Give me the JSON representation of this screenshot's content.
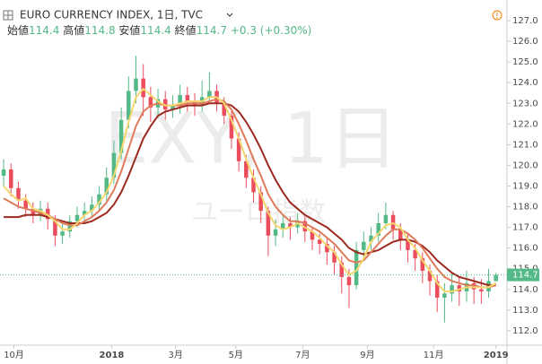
{
  "header": {
    "title": "EURO CURRENCY INDEX, 1日, TVC",
    "open_label": "始値",
    "open": 114.4,
    "high_label": "高値",
    "high": 114.8,
    "low_label": "安値",
    "low": 114.4,
    "close_label": "終値",
    "close": 114.7,
    "change": "+0.3 (+0.30%)"
  },
  "watermark": {
    "symbol": "EXY, 1日",
    "name": "ユーロ指数"
  },
  "chart_data": {
    "type": "candlestick",
    "up_color": "#53b987",
    "down_color": "#eb4d5c",
    "grid": false,
    "xlim": [
      -0.5,
      68.5
    ],
    "xticks": [
      {
        "value": 1.4,
        "label": "10月"
      },
      {
        "value": 14.7,
        "label": "2018"
      },
      {
        "value": 23.4,
        "label": "3月"
      },
      {
        "value": 31.6,
        "label": "5月"
      },
      {
        "value": 40.7,
        "label": "7月"
      },
      {
        "value": 49.5,
        "label": "9月"
      },
      {
        "value": 58.5,
        "label": "11月"
      },
      {
        "value": 67,
        "label": "2019"
      }
    ],
    "ylim": [
      111.3,
      128.0
    ],
    "yticks": [
      {
        "value": 112,
        "label": "112.0"
      },
      {
        "value": 113,
        "label": "113.0"
      },
      {
        "value": 114,
        "label": "114.0"
      },
      {
        "value": 115,
        "label": "115.0"
      },
      {
        "value": 116,
        "label": "116.0"
      },
      {
        "value": 117,
        "label": "117.0"
      },
      {
        "value": 118,
        "label": "118.0"
      },
      {
        "value": 119,
        "label": "119.0"
      },
      {
        "value": 120,
        "label": "120.0"
      },
      {
        "value": 121,
        "label": "121.0"
      },
      {
        "value": 122,
        "label": "122.0"
      },
      {
        "value": 123,
        "label": "123.0"
      },
      {
        "value": 124,
        "label": "124.0"
      },
      {
        "value": 125,
        "label": "125.0"
      },
      {
        "value": 126,
        "label": "126.0"
      },
      {
        "value": 127,
        "label": "127.0"
      }
    ],
    "last_price": 114.7,
    "last_color": "#53b987",
    "candles": [
      [
        119.5,
        120.3,
        119.0,
        119.8
      ],
      [
        119.8,
        120.1,
        118.5,
        118.9
      ],
      [
        118.9,
        119.2,
        117.9,
        118.3
      ],
      [
        118.3,
        118.6,
        117.5,
        117.9
      ],
      [
        117.9,
        118.2,
        117.2,
        117.6
      ],
      [
        117.6,
        118.3,
        117.3,
        117.9
      ],
      [
        117.9,
        118.2,
        116.9,
        117.4
      ],
      [
        117.4,
        117.6,
        116.1,
        116.6
      ],
      [
        116.6,
        117.2,
        116.2,
        116.8
      ],
      [
        116.8,
        117.6,
        116.5,
        117.3
      ],
      [
        117.3,
        118.0,
        117.0,
        117.6
      ],
      [
        117.6,
        118.2,
        117.3,
        117.8
      ],
      [
        117.8,
        118.5,
        117.5,
        118.1
      ],
      [
        118.1,
        119.0,
        117.8,
        118.6
      ],
      [
        118.6,
        119.9,
        118.3,
        119.4
      ],
      [
        119.4,
        121.2,
        119.1,
        120.6
      ],
      [
        120.6,
        122.8,
        120.3,
        122.2
      ],
      [
        122.2,
        124.3,
        121.8,
        123.6
      ],
      [
        123.6,
        125.3,
        123.0,
        124.2
      ],
      [
        124.2,
        124.9,
        122.4,
        123.3
      ],
      [
        123.3,
        123.8,
        122.1,
        122.8
      ],
      [
        122.8,
        123.7,
        122.3,
        123.2
      ],
      [
        123.2,
        123.6,
        122.2,
        122.7
      ],
      [
        122.7,
        123.4,
        122.3,
        122.9
      ],
      [
        122.9,
        123.9,
        122.5,
        123.4
      ],
      [
        123.4,
        123.8,
        122.6,
        123.1
      ],
      [
        123.1,
        123.5,
        122.4,
        122.9
      ],
      [
        122.9,
        124.1,
        122.6,
        123.3
      ],
      [
        123.3,
        124.5,
        123.0,
        123.6
      ],
      [
        123.6,
        123.9,
        122.6,
        123.0
      ],
      [
        123.0,
        123.3,
        122.0,
        122.4
      ],
      [
        122.4,
        122.6,
        120.8,
        121.3
      ],
      [
        121.3,
        121.6,
        119.7,
        120.2
      ],
      [
        120.2,
        120.5,
        118.9,
        119.4
      ],
      [
        119.4,
        119.8,
        118.2,
        118.7
      ],
      [
        118.7,
        119.0,
        117.2,
        117.8
      ],
      [
        117.8,
        118.0,
        115.6,
        116.6
      ],
      [
        116.6,
        117.4,
        116.1,
        116.9
      ],
      [
        116.9,
        117.6,
        116.5,
        117.2
      ],
      [
        117.2,
        117.5,
        116.4,
        117.0
      ],
      [
        117.0,
        117.7,
        116.7,
        117.3
      ],
      [
        117.3,
        117.5,
        116.3,
        116.8
      ],
      [
        116.8,
        117.0,
        115.9,
        116.4
      ],
      [
        116.4,
        116.7,
        115.7,
        116.2
      ],
      [
        116.2,
        116.5,
        115.2,
        115.8
      ],
      [
        115.8,
        116.1,
        114.7,
        115.3
      ],
      [
        115.3,
        115.6,
        113.8,
        114.6
      ],
      [
        114.6,
        115.0,
        113.1,
        114.2
      ],
      [
        114.2,
        116.3,
        114.0,
        115.9
      ],
      [
        115.9,
        116.8,
        115.5,
        116.3
      ],
      [
        116.3,
        117.0,
        115.9,
        116.6
      ],
      [
        116.6,
        117.7,
        116.3,
        117.2
      ],
      [
        117.2,
        118.2,
        116.9,
        117.6
      ],
      [
        117.6,
        117.8,
        116.4,
        116.9
      ],
      [
        116.9,
        117.2,
        115.9,
        116.4
      ],
      [
        116.4,
        116.7,
        115.3,
        115.9
      ],
      [
        115.9,
        116.2,
        114.9,
        115.5
      ],
      [
        115.5,
        115.8,
        114.3,
        114.9
      ],
      [
        114.9,
        115.2,
        113.7,
        114.4
      ],
      [
        114.4,
        114.7,
        112.9,
        113.6
      ],
      [
        113.6,
        114.3,
        112.4,
        113.8
      ],
      [
        113.8,
        114.8,
        113.4,
        114.2
      ],
      [
        114.2,
        114.6,
        113.2,
        113.9
      ],
      [
        113.9,
        114.9,
        113.4,
        114.3
      ],
      [
        114.3,
        114.6,
        113.3,
        114.0
      ],
      [
        114.0,
        114.5,
        113.3,
        113.9
      ],
      [
        113.9,
        115.0,
        113.6,
        114.4
      ],
      [
        114.4,
        114.8,
        114.4,
        114.7
      ]
    ],
    "series": [
      {
        "color": "#9c2a1f",
        "values": [
          117.5,
          117.5,
          117.5,
          117.6,
          117.6,
          117.6,
          117.5,
          117.4,
          117.3,
          117.2,
          117.2,
          117.2,
          117.3,
          117.5,
          117.7,
          118.1,
          118.7,
          119.5,
          120.4,
          121.3,
          121.9,
          122.4,
          122.6,
          122.7,
          122.8,
          122.9,
          122.9,
          122.9,
          123.0,
          123.0,
          123.0,
          122.9,
          122.6,
          122.1,
          121.5,
          120.8,
          120.0,
          119.3,
          118.7,
          118.2,
          117.9,
          117.6,
          117.4,
          117.2,
          117.0,
          116.7,
          116.4,
          116.0,
          115.8,
          115.7,
          115.8,
          115.9,
          116.1,
          116.3,
          116.4,
          116.4,
          116.3,
          116.1,
          115.8,
          115.4,
          115.1,
          114.8,
          114.6,
          114.5,
          114.4,
          114.3,
          114.2,
          114.2
        ]
      },
      {
        "color": "#e07a5a",
        "values": [
          118.4,
          118.2,
          118.0,
          117.9,
          117.8,
          117.7,
          117.6,
          117.4,
          117.2,
          117.1,
          117.1,
          117.3,
          117.5,
          117.8,
          118.2,
          118.8,
          119.7,
          120.8,
          121.9,
          122.6,
          122.9,
          123.0,
          122.9,
          122.9,
          122.9,
          123.0,
          123.0,
          123.0,
          123.1,
          123.2,
          123.1,
          122.7,
          122.0,
          121.2,
          120.3,
          119.5,
          118.6,
          118.0,
          117.6,
          117.3,
          117.3,
          117.2,
          117.0,
          116.8,
          116.5,
          116.2,
          115.8,
          115.4,
          115.3,
          115.4,
          115.8,
          116.2,
          116.6,
          116.9,
          116.9,
          116.7,
          116.4,
          116.0,
          115.5,
          115.0,
          114.6,
          114.4,
          114.3,
          114.2,
          114.2,
          114.1,
          114.1,
          114.2
        ]
      },
      {
        "color": "#f5d76e",
        "values": [
          119.0,
          118.6,
          118.3,
          118.4,
          117.9,
          117.8,
          117.6,
          117.3,
          116.9,
          116.9,
          117.2,
          117.6,
          117.8,
          118.2,
          118.7,
          119.5,
          120.7,
          122.1,
          123.3,
          123.7,
          123.4,
          123.1,
          122.9,
          122.9,
          123.0,
          123.1,
          123.1,
          123.1,
          123.3,
          123.3,
          123.0,
          122.2,
          121.3,
          120.3,
          119.4,
          118.6,
          117.7,
          117.1,
          116.9,
          117.0,
          117.2,
          117.0,
          116.8,
          116.5,
          116.1,
          115.8,
          115.2,
          114.7,
          114.9,
          115.5,
          116.3,
          116.7,
          117.1,
          117.2,
          117.0,
          116.4,
          116.0,
          115.4,
          114.9,
          114.3,
          113.9,
          113.9,
          114.0,
          114.1,
          114.1,
          114.1,
          114.1,
          114.3
        ]
      }
    ]
  }
}
